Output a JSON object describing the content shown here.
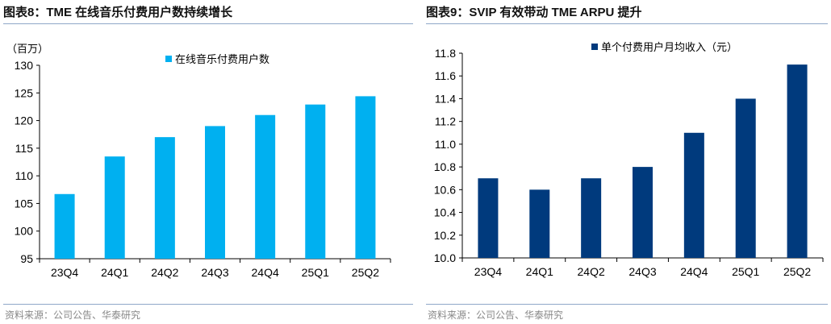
{
  "charts": [
    {
      "title": "图表8：TME 在线音乐付费用户数持续增长",
      "source": "资料来源：公司公告、华泰研究"
    },
    {
      "title": "图表9：SVIP 有效带动 TME ARPU 提升",
      "source": "资料来源：公司公告、华泰研究"
    }
  ],
  "chart_data": [
    {
      "type": "bar",
      "title": "图表8：TME 在线音乐付费用户数持续增长",
      "ylabel": "（百万）",
      "categories": [
        "23Q4",
        "24Q1",
        "24Q2",
        "24Q3",
        "24Q4",
        "25Q1",
        "25Q2"
      ],
      "series": [
        {
          "name": "在线音乐付费用户数",
          "values": [
            106.7,
            113.5,
            117.0,
            119.0,
            121.0,
            122.9,
            124.4
          ],
          "color": "#00b0f0"
        }
      ],
      "ylim": [
        95,
        130
      ],
      "yticks": [
        "95",
        "100",
        "105",
        "110",
        "115",
        "120",
        "125",
        "130"
      ],
      "grid": false,
      "legend": "top"
    },
    {
      "type": "bar",
      "title": "图表9：SVIP 有效带动 TME ARPU 提升",
      "ylabel": "",
      "categories": [
        "23Q4",
        "24Q1",
        "24Q2",
        "24Q3",
        "24Q4",
        "25Q1",
        "25Q2"
      ],
      "series": [
        {
          "name": "单个付费用户月均收入（元）",
          "values": [
            10.7,
            10.6,
            10.7,
            10.8,
            11.1,
            11.4,
            11.7
          ],
          "color": "#003a7d"
        }
      ],
      "ylim": [
        10.0,
        11.8
      ],
      "yticks": [
        "10.0",
        "10.2",
        "10.4",
        "10.6",
        "10.8",
        "11.0",
        "11.2",
        "11.4",
        "11.6",
        "11.8"
      ],
      "grid": false,
      "legend": "top"
    }
  ]
}
